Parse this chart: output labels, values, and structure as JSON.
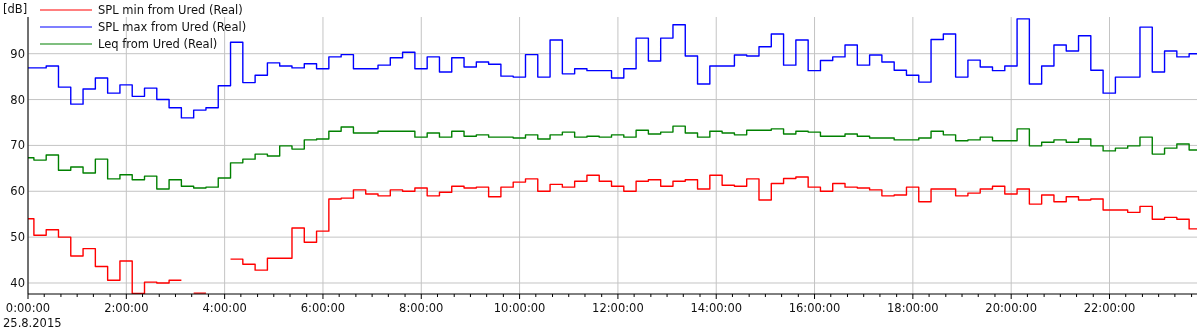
{
  "chart_data": {
    "type": "step",
    "ylabel": "[dB]",
    "annotations": [
      "25.8.2015"
    ],
    "xlim": [
      0,
      23.78
    ],
    "ylim": [
      37.6,
      98
    ],
    "xticks": [
      {
        "value": 0,
        "label": "0:00:00"
      },
      {
        "value": 0.33,
        "label": null
      },
      {
        "value": 0.67,
        "label": null
      },
      {
        "value": 1,
        "label": null
      },
      {
        "value": 1.33,
        "label": null
      },
      {
        "value": 1.67,
        "label": null
      },
      {
        "value": 2,
        "label": "2:00:00"
      },
      {
        "value": 2.33,
        "label": null
      },
      {
        "value": 2.67,
        "label": null
      },
      {
        "value": 3,
        "label": null
      },
      {
        "value": 3.33,
        "label": null
      },
      {
        "value": 3.67,
        "label": null
      },
      {
        "value": 4,
        "label": "4:00:00"
      },
      {
        "value": 4.33,
        "label": null
      },
      {
        "value": 4.67,
        "label": null
      },
      {
        "value": 5,
        "label": null
      },
      {
        "value": 5.33,
        "label": null
      },
      {
        "value": 5.67,
        "label": null
      },
      {
        "value": 6,
        "label": "6:00:00"
      },
      {
        "value": 6.33,
        "label": null
      },
      {
        "value": 6.67,
        "label": null
      },
      {
        "value": 7,
        "label": null
      },
      {
        "value": 7.33,
        "label": null
      },
      {
        "value": 7.67,
        "label": null
      },
      {
        "value": 8,
        "label": "8:00:00"
      },
      {
        "value": 8.33,
        "label": null
      },
      {
        "value": 8.67,
        "label": null
      },
      {
        "value": 9,
        "label": null
      },
      {
        "value": 9.33,
        "label": null
      },
      {
        "value": 9.67,
        "label": null
      },
      {
        "value": 10,
        "label": "10:00:00"
      },
      {
        "value": 10.33,
        "label": null
      },
      {
        "value": 10.67,
        "label": null
      },
      {
        "value": 11,
        "label": null
      },
      {
        "value": 11.33,
        "label": null
      },
      {
        "value": 11.67,
        "label": null
      },
      {
        "value": 12,
        "label": "12:00:00"
      },
      {
        "value": 12.33,
        "label": null
      },
      {
        "value": 12.67,
        "label": null
      },
      {
        "value": 13,
        "label": null
      },
      {
        "value": 13.33,
        "label": null
      },
      {
        "value": 13.67,
        "label": null
      },
      {
        "value": 14,
        "label": "14:00:00"
      },
      {
        "value": 14.33,
        "label": null
      },
      {
        "value": 14.67,
        "label": null
      },
      {
        "value": 15,
        "label": null
      },
      {
        "value": 15.33,
        "label": null
      },
      {
        "value": 15.67,
        "label": null
      },
      {
        "value": 16,
        "label": "16:00:00"
      },
      {
        "value": 16.33,
        "label": null
      },
      {
        "value": 16.67,
        "label": null
      },
      {
        "value": 17,
        "label": null
      },
      {
        "value": 17.33,
        "label": null
      },
      {
        "value": 17.67,
        "label": null
      },
      {
        "value": 18,
        "label": "18:00:00"
      },
      {
        "value": 18.33,
        "label": null
      },
      {
        "value": 18.67,
        "label": null
      },
      {
        "value": 19,
        "label": null
      },
      {
        "value": 19.33,
        "label": null
      },
      {
        "value": 19.67,
        "label": null
      },
      {
        "value": 20,
        "label": "20:00:00"
      },
      {
        "value": 20.33,
        "label": null
      },
      {
        "value": 20.67,
        "label": null
      },
      {
        "value": 21,
        "label": null
      },
      {
        "value": 21.33,
        "label": null
      },
      {
        "value": 21.67,
        "label": null
      },
      {
        "value": 22,
        "label": "22:00:00"
      },
      {
        "value": 22.33,
        "label": null
      },
      {
        "value": 22.67,
        "label": null
      },
      {
        "value": 23,
        "label": null
      },
      {
        "value": 23.33,
        "label": null
      },
      {
        "value": 23.67,
        "label": null
      }
    ],
    "yticks": [
      40,
      50,
      60,
      70,
      80,
      90
    ],
    "grid": true,
    "legend": "top left",
    "series": [
      {
        "name": "SPL min from Ured (Real)",
        "color": "#ff0000",
        "x": [
          0,
          0.12,
          0.37,
          0.62,
          0.87,
          1.12,
          1.37,
          1.62,
          1.87,
          2.12,
          2.37,
          2.62,
          2.87,
          3.12,
          3.37,
          3.62,
          4.12,
          4.37,
          4.62,
          4.87,
          5.37,
          5.62,
          5.87,
          6.12,
          6.37,
          6.62,
          6.87,
          7.12,
          7.37,
          7.62,
          7.87,
          8.12,
          8.37,
          8.62,
          8.87,
          9.12,
          9.37,
          9.62,
          9.87,
          10.12,
          10.37,
          10.62,
          10.87,
          11.12,
          11.37,
          11.62,
          11.87,
          12.12,
          12.37,
          12.62,
          12.87,
          13.12,
          13.37,
          13.62,
          13.87,
          14.12,
          14.37,
          14.62,
          14.87,
          15.12,
          15.37,
          15.62,
          15.87,
          16.12,
          16.37,
          16.62,
          16.87,
          17.12,
          17.37,
          17.62,
          17.87,
          18.12,
          18.37,
          18.87,
          19.12,
          19.37,
          19.62,
          19.87,
          20.12,
          20.37,
          20.62,
          20.87,
          21.12,
          21.37,
          21.62,
          21.87,
          22.37,
          22.62,
          22.87,
          23.12,
          23.37,
          23.62,
          23.78
        ],
        "values": [
          54.0,
          50.4,
          51.6,
          50.0,
          45.9,
          47.5,
          43.6,
          40.6,
          44.8,
          37.7,
          40.2,
          40.0,
          40.6,
          null,
          37.8,
          null,
          45.2,
          44.1,
          42.8,
          45.4,
          52.0,
          48.9,
          51.3,
          58.3,
          58.5,
          60.3,
          59.4,
          59.0,
          60.3,
          60.0,
          60.7,
          59.0,
          59.8,
          61.1,
          60.7,
          60.9,
          58.8,
          60.9,
          62.0,
          62.7,
          60.0,
          61.5,
          60.9,
          62.2,
          63.5,
          62.2,
          61.1,
          60.0,
          62.2,
          62.5,
          61.1,
          62.2,
          62.5,
          60.5,
          63.5,
          61.3,
          61.1,
          62.7,
          58.1,
          61.7,
          62.8,
          63.1,
          60.9,
          60.0,
          61.7,
          60.9,
          60.7,
          60.3,
          59.0,
          59.2,
          60.9,
          57.7,
          60.5,
          59.0,
          59.6,
          60.5,
          61.1,
          59.4,
          60.5,
          57.2,
          59.2,
          57.7,
          58.8,
          58.1,
          58.3,
          55.9,
          55.4,
          56.7,
          53.9,
          54.3,
          53.9,
          51.8,
          51.8
        ]
      },
      {
        "name": "SPL max from Ured (Real)",
        "color": "#0000ff",
        "x": [
          0,
          0.37,
          0.62,
          0.87,
          1.12,
          1.37,
          1.62,
          1.87,
          2.12,
          2.37,
          2.62,
          2.87,
          3.12,
          3.37,
          3.62,
          3.87,
          4.12,
          4.37,
          4.62,
          4.87,
          5.12,
          5.37,
          5.62,
          5.87,
          6.12,
          6.37,
          6.62,
          7.12,
          7.37,
          7.62,
          7.87,
          8.12,
          8.37,
          8.62,
          8.87,
          9.12,
          9.37,
          9.62,
          9.87,
          10.12,
          10.37,
          10.62,
          10.87,
          11.12,
          11.37,
          11.87,
          12.12,
          12.37,
          12.62,
          12.87,
          13.12,
          13.37,
          13.62,
          13.87,
          14.37,
          14.62,
          14.87,
          15.12,
          15.37,
          15.62,
          15.87,
          16.12,
          16.37,
          16.62,
          16.87,
          17.12,
          17.37,
          17.62,
          17.87,
          18.12,
          18.37,
          18.62,
          18.87,
          19.12,
          19.37,
          19.62,
          19.87,
          20.12,
          20.37,
          20.62,
          20.87,
          21.12,
          21.37,
          21.62,
          21.87,
          22.12,
          22.62,
          22.87,
          23.12,
          23.37,
          23.62,
          23.78
        ],
        "values": [
          86.9,
          87.3,
          82.7,
          79.0,
          82.3,
          84.7,
          81.4,
          83.2,
          80.7,
          82.5,
          80.0,
          78.2,
          76.0,
          77.7,
          78.2,
          83.0,
          92.5,
          83.7,
          85.3,
          88.0,
          87.3,
          86.9,
          87.8,
          86.7,
          89.3,
          89.8,
          86.7,
          87.5,
          89.1,
          90.3,
          86.7,
          89.3,
          86.0,
          89.1,
          87.1,
          88.2,
          87.7,
          85.1,
          84.9,
          89.8,
          84.9,
          93.0,
          85.6,
          86.7,
          86.3,
          84.7,
          86.7,
          93.4,
          88.4,
          93.4,
          96.3,
          89.5,
          83.4,
          87.3,
          89.7,
          89.5,
          91.5,
          94.3,
          87.5,
          93.0,
          86.3,
          88.5,
          89.3,
          91.9,
          87.5,
          89.7,
          88.2,
          86.4,
          85.3,
          83.8,
          93.1,
          94.3,
          84.9,
          88.6,
          87.1,
          86.3,
          87.3,
          97.6,
          83.4,
          87.3,
          91.9,
          90.6,
          93.9,
          86.4,
          81.4,
          84.9,
          95.8,
          86.0,
          90.6,
          89.3,
          90.0,
          90.0
        ]
      },
      {
        "name": "Leq from Ured (Real)",
        "color": "#008000",
        "x": [
          0,
          0.12,
          0.37,
          0.62,
          0.87,
          1.12,
          1.37,
          1.62,
          1.87,
          2.12,
          2.37,
          2.62,
          2.87,
          3.12,
          3.37,
          3.62,
          3.87,
          4.12,
          4.37,
          4.62,
          4.87,
          5.12,
          5.37,
          5.62,
          5.87,
          6.12,
          6.37,
          6.62,
          7.12,
          7.87,
          8.12,
          8.37,
          8.62,
          8.87,
          9.12,
          9.37,
          9.87,
          10.12,
          10.37,
          10.62,
          10.87,
          11.12,
          11.37,
          11.62,
          11.87,
          12.12,
          12.37,
          12.62,
          12.87,
          13.12,
          13.37,
          13.62,
          13.87,
          14.12,
          14.37,
          14.62,
          15.12,
          15.37,
          15.62,
          15.87,
          16.12,
          16.62,
          16.87,
          17.12,
          17.62,
          18.12,
          18.37,
          18.62,
          18.87,
          19.12,
          19.37,
          19.62,
          20.12,
          20.37,
          20.62,
          20.87,
          21.12,
          21.37,
          21.62,
          21.87,
          22.12,
          22.37,
          22.62,
          22.87,
          23.12,
          23.37,
          23.62,
          23.78
        ],
        "values": [
          67.3,
          66.8,
          67.9,
          64.6,
          65.3,
          64.0,
          67.0,
          62.7,
          63.6,
          62.5,
          63.3,
          60.5,
          62.5,
          61.1,
          60.7,
          60.9,
          62.9,
          66.2,
          67.0,
          68.1,
          67.7,
          69.9,
          69.2,
          71.2,
          71.4,
          73.1,
          74.0,
          72.7,
          73.1,
          71.8,
          72.7,
          71.8,
          73.1,
          72.0,
          72.3,
          71.8,
          71.6,
          72.3,
          71.4,
          72.3,
          72.9,
          71.8,
          72.0,
          71.8,
          72.3,
          71.8,
          73.3,
          72.5,
          72.9,
          74.2,
          72.7,
          71.8,
          73.1,
          72.7,
          72.3,
          73.3,
          73.6,
          72.5,
          73.1,
          72.9,
          72.0,
          72.5,
          72.0,
          71.6,
          71.2,
          71.6,
          73.1,
          72.3,
          71.0,
          71.2,
          71.8,
          71.0,
          73.6,
          69.9,
          70.7,
          71.2,
          70.7,
          71.4,
          69.9,
          68.8,
          69.4,
          69.9,
          71.8,
          68.1,
          69.4,
          70.3,
          69.0,
          69.0
        ]
      }
    ]
  }
}
